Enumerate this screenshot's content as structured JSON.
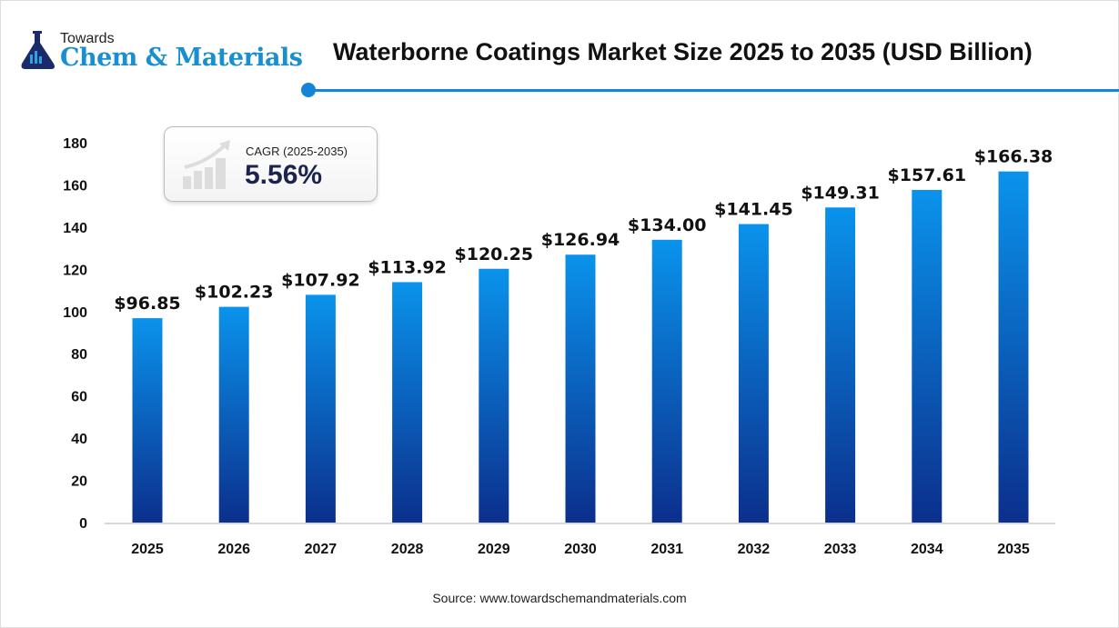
{
  "logo": {
    "line1": "Towards",
    "line2": "Chem & Materials"
  },
  "header": {
    "title": "Waterborne Coatings Market Size 2025 to 2035 (USD Billion)"
  },
  "cagr": {
    "label": "CAGR (2025-2035)",
    "value": "5.56%"
  },
  "source": "Source: www.towardschemandmaterials.com",
  "colors": {
    "bar_top": "#0a93ec",
    "bar_bottom": "#0b2f8c",
    "accent": "#1583d6"
  },
  "chart_data": {
    "type": "bar",
    "title": "Waterborne Coatings Market Size 2025 to 2035 (USD Billion)",
    "categories": [
      "2025",
      "2026",
      "2027",
      "2028",
      "2029",
      "2030",
      "2031",
      "2032",
      "2033",
      "2034",
      "2035"
    ],
    "values": [
      96.85,
      102.23,
      107.92,
      113.92,
      120.25,
      126.94,
      134.0,
      141.45,
      149.31,
      157.61,
      166.38
    ],
    "data_labels": [
      "$96.85",
      "$102.23",
      "$107.92",
      "$113.92",
      "$120.25",
      "$126.94",
      "$134.00",
      "$141.45",
      "$149.31",
      "$157.61",
      "$166.38"
    ],
    "yticks": [
      "0",
      "20",
      "40",
      "60",
      "80",
      "100",
      "120",
      "140",
      "160",
      "180"
    ],
    "ylim": [
      0,
      180
    ],
    "grid": false,
    "xlabel": "",
    "ylabel": ""
  }
}
